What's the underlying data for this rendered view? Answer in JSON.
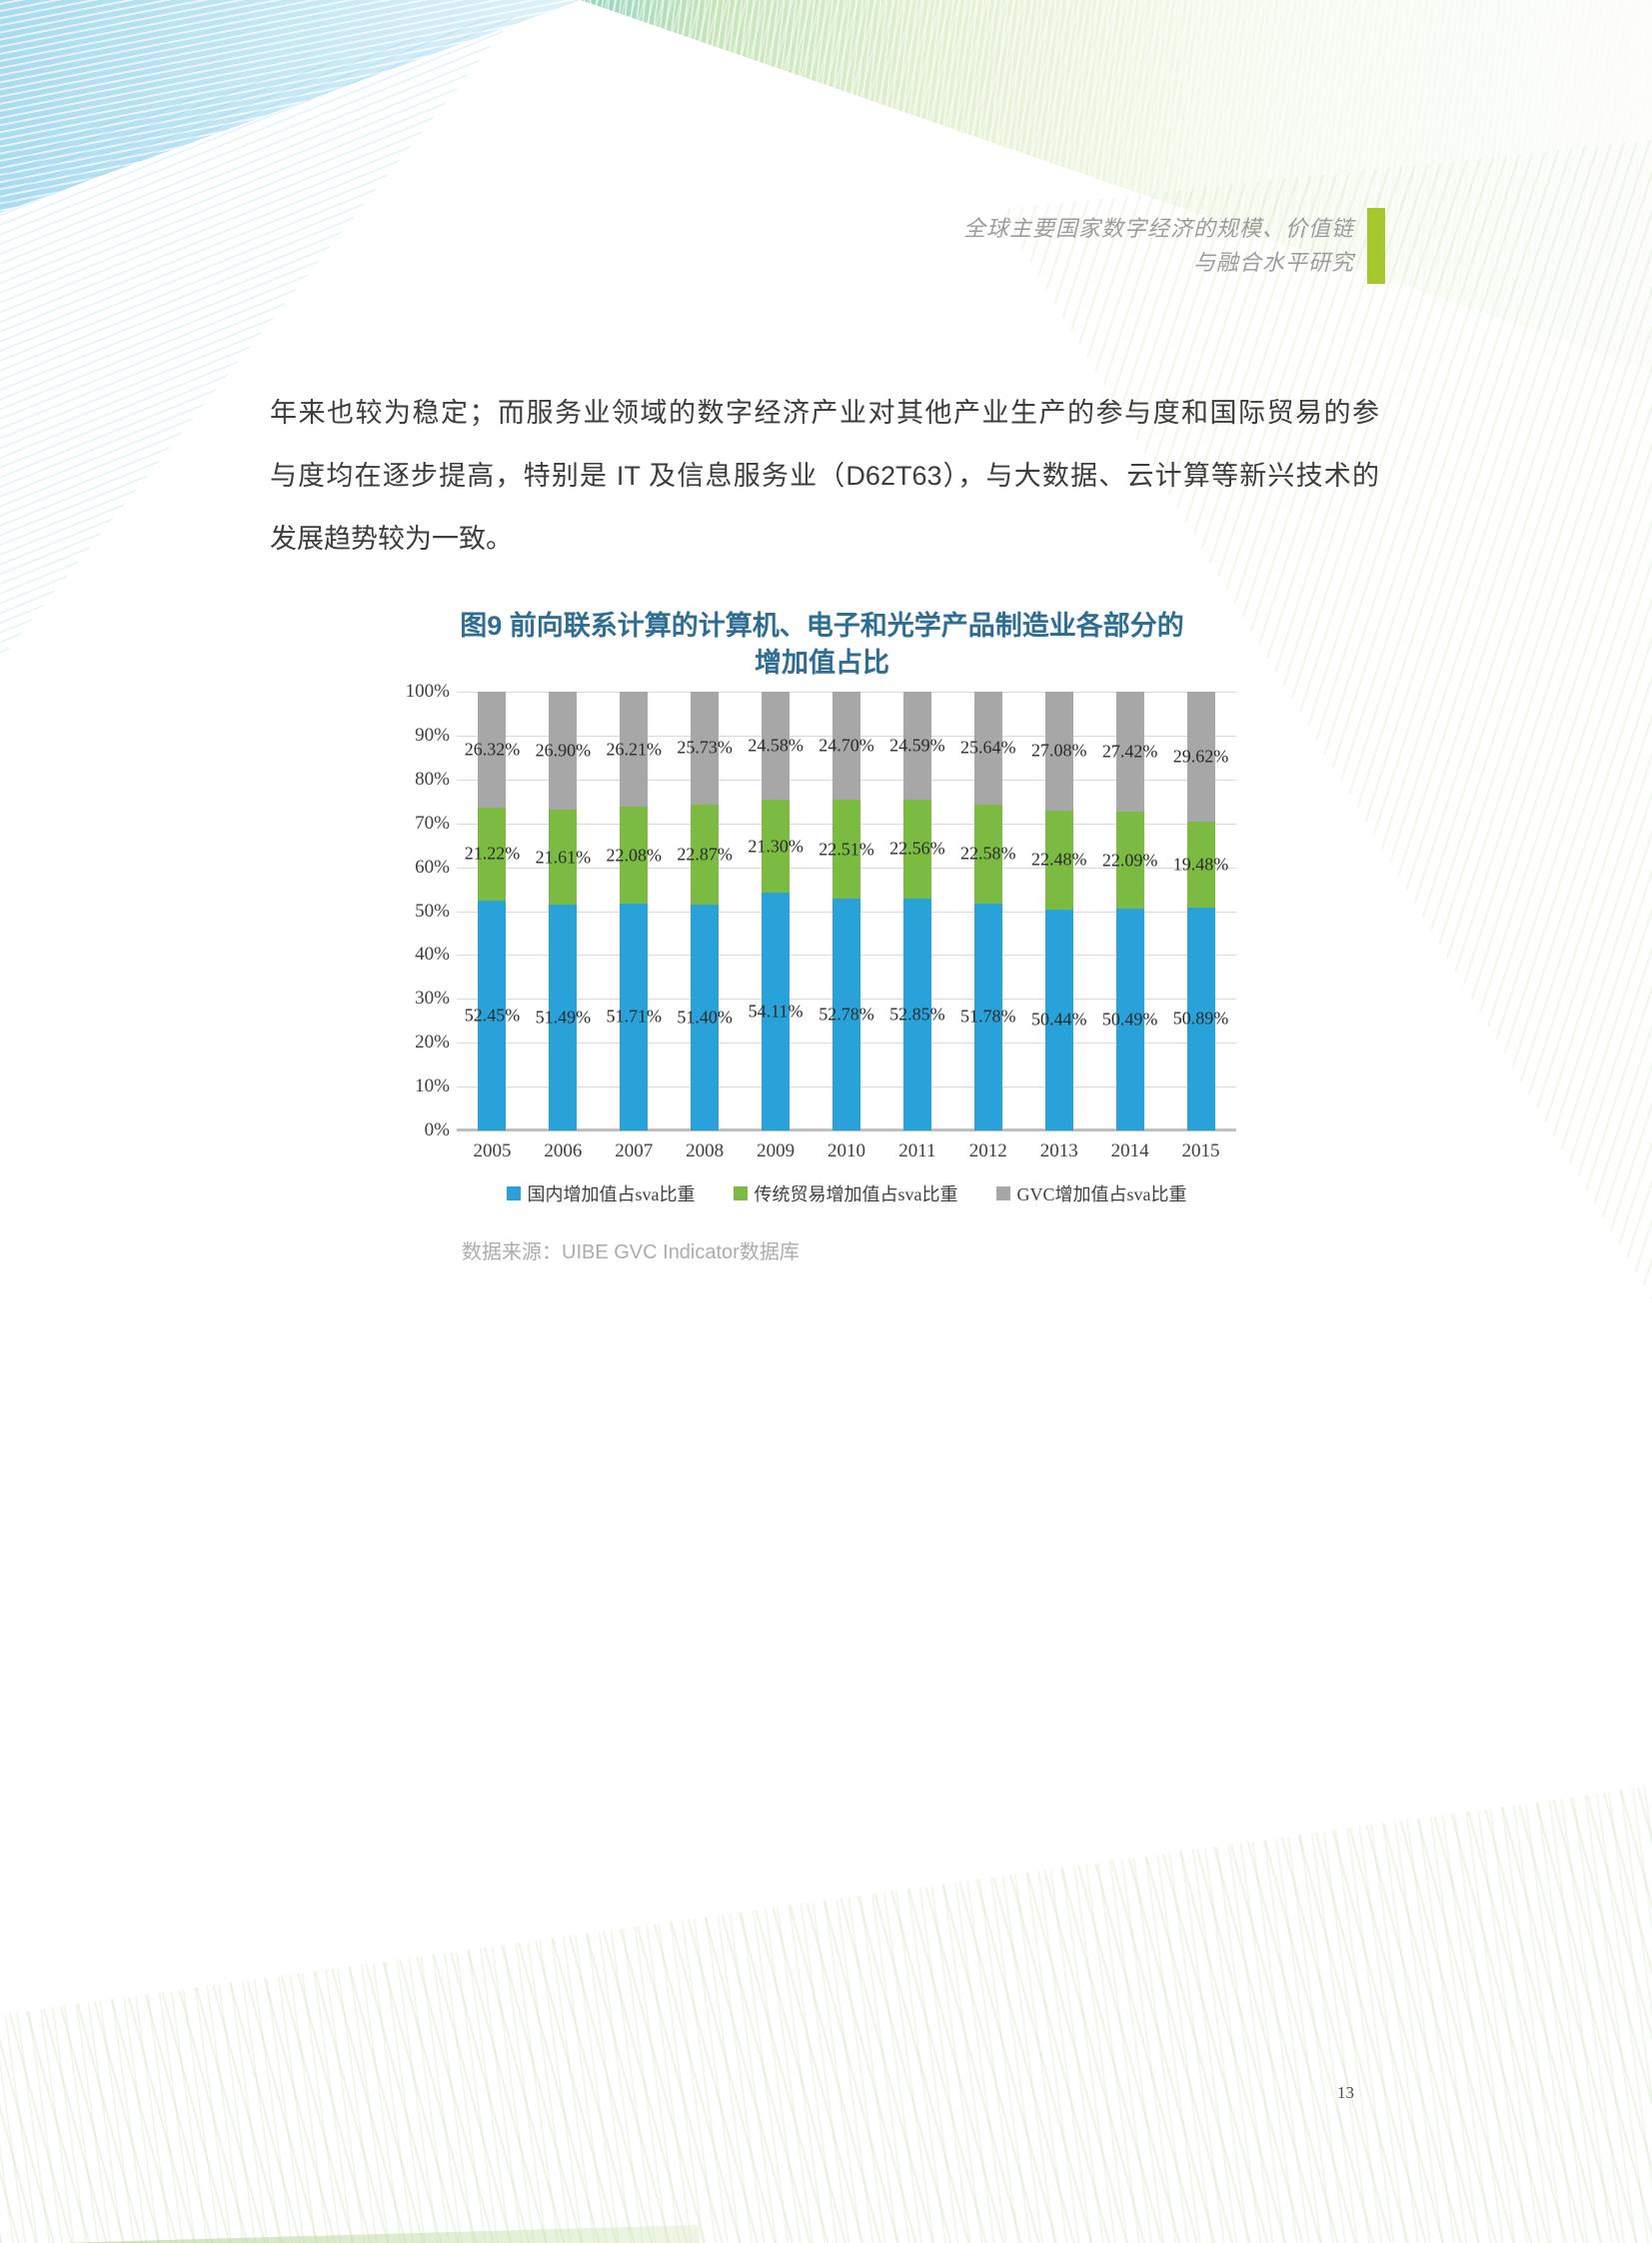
{
  "header": {
    "title_line1": "全球主要国家数字经济的规模、价值链",
    "title_line2": "与融合水平研究",
    "accent_color": "#A6C82F"
  },
  "paragraph": {
    "line1": "年来也较为稳定；而服务业领域的数字经济产业对其他产业生产的参与度和国际贸易的参",
    "line2": "与度均在逐步提高，特别是 IT 及信息服务业（D62T63），与大数据、云计算等新兴技术的",
    "line3": "发展趋势较为一致。"
  },
  "chart_data": {
    "type": "bar",
    "stacked": true,
    "percent_stacked": true,
    "title_line1": "图9  前向联系计算的计算机、电子和光学产品制造业各部分的",
    "title_line2": "增加值占比",
    "title_color": "#2E6E93",
    "categories": [
      "2005",
      "2006",
      "2007",
      "2008",
      "2009",
      "2010",
      "2011",
      "2012",
      "2013",
      "2014",
      "2015"
    ],
    "series": [
      {
        "name": "国内增加值占sva比重",
        "color": "#29A2D9",
        "values": [
          52.45,
          51.49,
          51.71,
          51.4,
          54.11,
          52.78,
          52.85,
          51.78,
          50.44,
          50.49,
          50.89
        ]
      },
      {
        "name": "传统贸易增加值占sva比重",
        "color": "#7CBB42",
        "values": [
          21.22,
          21.61,
          22.08,
          22.87,
          21.3,
          22.51,
          22.56,
          22.58,
          22.48,
          22.09,
          19.48
        ]
      },
      {
        "name": "GVC增加值占sva比重",
        "color": "#A7A7A7",
        "values": [
          26.32,
          26.9,
          26.21,
          25.73,
          24.58,
          24.7,
          24.59,
          25.64,
          27.08,
          27.42,
          29.62
        ]
      }
    ],
    "y_ticks": [
      "100%",
      "90%",
      "80%",
      "70%",
      "60%",
      "50%",
      "40%",
      "30%",
      "20%",
      "10%",
      "0%"
    ],
    "ylim": [
      0,
      100
    ],
    "grid": true,
    "legend_position": "bottom",
    "value_label_suffix": "%"
  },
  "source_note": "数据来源：UIBE GVC Indicator数据库",
  "page_number": "13"
}
